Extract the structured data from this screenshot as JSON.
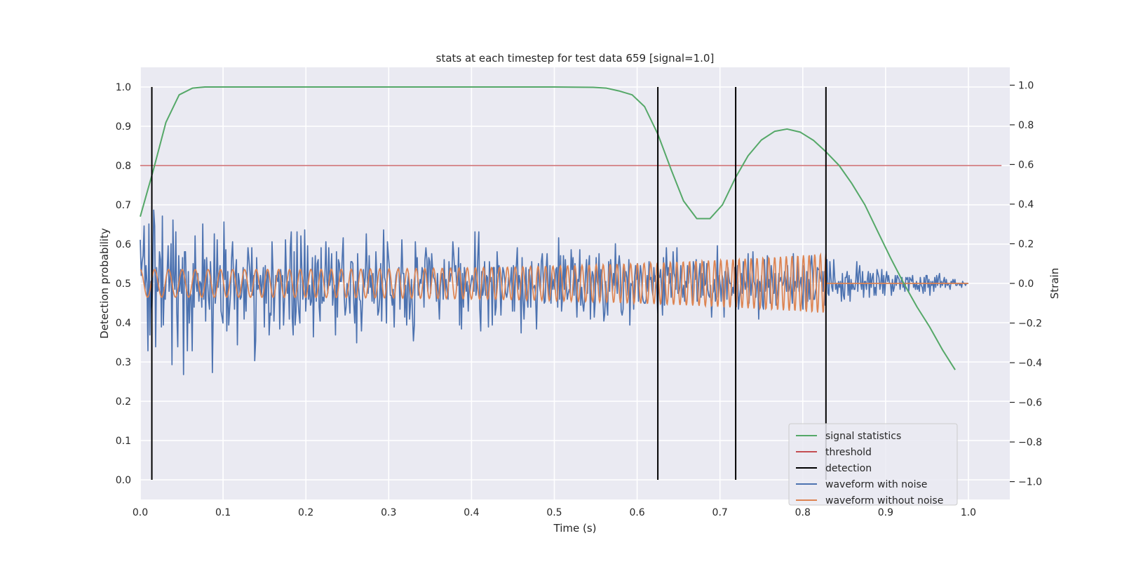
{
  "chart_data": {
    "type": "line",
    "title": "stats at each timestep for test data 659 [signal=1.0]",
    "xlabel": "Time (s)",
    "ylabel": "Detection probability",
    "ylabel_right": "Strain",
    "xlim": [
      0.0,
      1.05
    ],
    "ylim": [
      -0.05,
      1.05
    ],
    "ylim_right": [
      -1.09,
      1.09
    ],
    "x_ticks": [
      0.0,
      0.1,
      0.2,
      0.3,
      0.4,
      0.5,
      0.6,
      0.7,
      0.8,
      0.9,
      1.0
    ],
    "x_tick_labels": [
      "0.0",
      "0.1",
      "0.2",
      "0.3",
      "0.4",
      "0.5",
      "0.6",
      "0.7",
      "0.8",
      "0.9",
      "1.0"
    ],
    "y_ticks": [
      0.0,
      0.1,
      0.2,
      0.3,
      0.4,
      0.5,
      0.6,
      0.7,
      0.8,
      0.9,
      1.0
    ],
    "y_tick_labels": [
      "0.0",
      "0.1",
      "0.2",
      "0.3",
      "0.4",
      "0.5",
      "0.6",
      "0.7",
      "0.8",
      "0.9",
      "1.0"
    ],
    "y_right_ticks": [
      -1.0,
      -0.8,
      -0.6,
      -0.4,
      -0.2,
      0.0,
      0.2,
      0.4,
      0.6,
      0.8,
      1.0
    ],
    "y_right_tick_labels": [
      "−1.0",
      "−0.8",
      "−0.6",
      "−0.4",
      "−0.2",
      "0.0",
      "0.2",
      "0.4",
      "0.6",
      "0.8",
      "1.0"
    ],
    "grid": true,
    "legend_position": "lower-right",
    "colors": {
      "background": "#eaeaf2",
      "grid": "#ffffff",
      "signal_statistics": "#55a868",
      "threshold": "#c44e52",
      "detection": "#000000",
      "waveform_noise": "#4c72b0",
      "waveform_clean": "#dd8452"
    },
    "legend": [
      {
        "label": "signal statistics",
        "color": "#55a868"
      },
      {
        "label": "threshold",
        "color": "#c44e52"
      },
      {
        "label": "detection",
        "color": "#000000"
      },
      {
        "label": "waveform with noise",
        "color": "#4c72b0"
      },
      {
        "label": "waveform without noise",
        "color": "#dd8452"
      }
    ],
    "series": [
      {
        "name": "signal statistics",
        "axis": "left",
        "x": [
          0.0,
          0.016,
          0.031,
          0.047,
          0.063,
          0.078,
          0.094,
          0.2,
          0.3,
          0.4,
          0.5,
          0.547,
          0.563,
          0.578,
          0.594,
          0.609,
          0.625,
          0.641,
          0.656,
          0.672,
          0.688,
          0.703,
          0.719,
          0.734,
          0.75,
          0.766,
          0.781,
          0.797,
          0.813,
          0.828,
          0.844,
          0.859,
          0.875,
          0.891,
          0.906,
          0.922,
          0.938,
          0.953,
          0.969,
          0.984
        ],
        "y": [
          0.67,
          0.79,
          0.91,
          0.98,
          0.997,
          1.0,
          1.0,
          1.0,
          1.0,
          1.0,
          1.0,
          0.999,
          0.997,
          0.99,
          0.98,
          0.95,
          0.88,
          0.79,
          0.71,
          0.665,
          0.665,
          0.7,
          0.77,
          0.825,
          0.865,
          0.887,
          0.893,
          0.885,
          0.864,
          0.835,
          0.8,
          0.755,
          0.7,
          0.63,
          0.565,
          0.5,
          0.44,
          0.39,
          0.33,
          0.28
        ]
      },
      {
        "name": "threshold",
        "axis": "left",
        "x": [
          0.0,
          1.04
        ],
        "y": [
          0.8,
          0.8
        ]
      },
      {
        "name": "waveform with noise",
        "axis": "right",
        "x_range": [
          0.0,
          1.0
        ],
        "y": [
          0.22,
          0.04,
          0.11,
          0.14,
          0.29,
          -0.03,
          0.09,
          0.0,
          -0.34,
          0.3,
          -0.26,
          0.01,
          -0.15,
          0.01,
          0.37,
          0.29,
          -0.32,
          0.08,
          -0.04,
          -0.03,
          0.16,
          0.12,
          -0.22,
          0.34,
          -0.21,
          -0.02,
          -0.08,
          0.03,
          0.06,
          0.19,
          -0.04,
          0.02,
          0.2,
          -0.41,
          0.32,
          0.02,
          -0.03,
          0.26,
          -0.15,
          -0.32,
          0.14,
          -0.04,
          0.07,
          -0.05,
          0.13,
          -0.46,
          0.16,
          0.16,
          -0.03,
          -0.34,
          0.06,
          -0.2,
          -0.05,
          -0.06,
          -0.34,
          0.1,
          -0.12,
          0.24,
          0.0,
          -0.04,
          0.05,
          -0.09,
          0.01,
          0.0,
          -0.12,
          0.3,
          -0.08,
          0.12,
          -0.19,
          0.13,
          0.01,
          -0.08,
          -0.13,
          0.11,
          -0.02,
          -0.45,
          -0.1,
          0.25,
          -0.1,
          -0.03,
          0.22,
          -0.02,
          0.04,
          0.09,
          -0.14,
          -0.17,
          -0.2,
          0.31,
          0.02,
          0.17,
          -0.24,
          0.06,
          -0.21,
          -0.12,
          -0.04,
          0.13,
          0.21,
          0.03,
          -0.13,
          0.06,
          0.12,
          -0.31,
          0.05,
          0.01,
          -0.08,
          -0.07,
          -0.01,
          0.08,
          -0.18,
          0.02,
          -0.14,
          0.04,
          0.18,
          0.12,
          0.06,
          -0.04,
          0.18,
          -0.06,
          0.04,
          -0.39,
          -0.29,
          0.13,
          -0.03,
          -0.01,
          -0.03,
          0.04,
          -0.06,
          0.01,
          0.08,
          -0.22,
          0.09,
          -0.1,
          0.06,
          0.05,
          -0.26,
          -0.15,
          -0.16,
          0.21,
          0.06,
          -0.19,
          -0.04,
          0.04,
          0.03,
          0.01,
          0.06,
          -0.23,
          0.07,
          0.01,
          0.04,
          -0.21,
          -0.08,
          0.22,
          0.03,
          -0.05,
          0.01,
          -0.18,
          0.18,
          0.26,
          -0.17,
          -0.26,
          0.16,
          -0.21,
          -0.14,
          0.26,
          -0.08,
          -0.15,
          -0.2,
          0.24,
          0.08,
          -0.08,
          -0.03,
          0.27,
          -0.14,
          -0.03,
          0.19,
          -0.08,
          -0.01,
          -0.11,
          -0.09,
          0.13,
          -0.27,
          0.01,
          0.14,
          -0.09,
          0.1,
          0.12,
          -0.12,
          -0.19,
          0.18,
          -0.1,
          -0.07,
          -0.09,
          0.04,
          0.21,
          0.02,
          -0.05,
          0.18,
          -0.01,
          0.02,
          0.15,
          -0.11,
          -0.04,
          -0.01,
          -0.26,
          0.16,
          -0.17,
          0.12,
          0.1,
          0.01,
          0.01,
          0.13,
          0.23,
          -0.06,
          -0.16,
          -0.12,
          0.0,
          -0.03,
          -0.07,
          -0.15,
          0.11,
          0.11,
          0.1,
          -0.1,
          -0.2,
          0.01,
          -0.3,
          0.15,
          -0.02,
          -0.08,
          -0.09,
          -0.24,
          -0.1,
          0.07,
          -0.02,
          0.03,
          0.25,
          0.04,
          -0.05,
          0.14,
          -0.02,
          0.04,
          -0.09,
          0.05,
          -0.1,
          -0.05,
          0.16,
          0.03,
          -0.16,
          -0.14,
          -0.07,
          0.1,
          -0.19,
          0.03,
          0.27,
          0.03,
          0.01,
          -0.2,
          0.21,
          0.14,
          0.08,
          -0.06,
          -0.06,
          -0.11,
          -0.03,
          -0.22,
          -0.01,
          0.04,
          0.06,
          0.07,
          0.08,
          -0.13,
          0.03,
          0.22,
          0.05,
          0.05,
          -0.17,
          -0.01,
          -0.21,
          0.0,
          0.05,
          -0.18,
          -0.1,
          0.02,
          -0.15,
          -0.29,
          -0.21,
          0.21,
          0.08,
          0.13,
          -0.06,
          -0.02,
          0.02,
          0.0,
          0.08,
          0.06,
          -0.12,
          0.12,
          0.18,
          0.12,
          -0.04,
          0.13,
          0.11,
          -0.05,
          0.15,
          0.07,
          0.03,
          0.02,
          -0.01,
          -0.09,
          0.05,
          -0.07,
          -0.18,
          -0.02,
          0.03,
          0.05,
          -0.08,
          0.12,
          -0.04,
          0.02,
          -0.04,
          -0.08,
          0.11,
          0.01,
          0.05,
          0.04,
          0.21,
          0.14,
          0.06,
          0.09,
          -0.01,
          -0.01,
          0.18,
          -0.21,
          0.1,
          -0.23,
          0.05,
          -0.12,
          0.08,
          0.04,
          -0.04,
          0.01,
          -0.14,
          -0.01,
          -0.04,
          0.01,
          0.04,
          0.01,
          -0.04,
          0.26,
          -0.06,
          -0.02,
          0.14,
          0.26,
          -0.13,
          -0.24,
          0.06,
          -0.06,
          -0.03,
          0.11,
          -0.06,
          0.04,
          0.03,
          -0.22,
          0.11,
          0.01,
          0.03,
          -0.21,
          0.08,
          0.08,
          -0.16,
          -0.12,
          0.16,
          0.05,
          0.09,
          -0.01,
          -0.16,
          -0.02,
          0.08,
          0.06,
          0.02,
          -0.05,
          -0.07,
          -0.04,
          0.03,
          -0.02,
          0.02,
          0.08,
          -0.14,
          0.09,
          -0.14,
          0.03,
          0.09,
          0.18,
          -0.03,
          0.04,
          0.0,
          -0.25,
          0.13,
          -0.08,
          -0.18,
          -0.05,
          0.08,
          -0.06,
          -0.12,
          0.07,
          0.04,
          -0.12,
          0.11,
          -0.03,
          -0.02,
          -0.01,
          -0.06,
          -0.23,
          -0.03,
          0.1,
          -0.01,
          -0.04,
          0.11,
          0.15,
          0.02,
          -0.1,
          -0.09,
          0.07,
          0.15,
          0.0,
          -0.07,
          0.09,
          -0.1,
          0.05,
          -0.03,
          0.02,
          -0.03,
          0.07,
          0.08,
          -0.12,
          0.23,
          -0.08,
          0.14,
          -0.14,
          -0.07,
          0.14,
          -0.03,
          0.12,
          -0.01,
          -0.08,
          -0.05,
          -0.03,
          -0.05,
          0.17,
          0.07,
          0.13,
          -0.06,
          0.1,
          -0.04,
          -0.17,
          0.02,
          0.01,
          0.17,
          -0.11,
          -0.02,
          -0.1,
          -0.14,
          -0.08,
          0.05,
          0.12,
          -0.05,
          0.08,
          0.14,
          -0.18,
          0.0,
          0.06,
          0.04,
          -0.17,
          -0.09,
          0.13,
          0.01,
          -0.01,
          0.15,
          -0.07,
          0.07,
          0.04,
          -0.07,
          -0.19,
          -0.15,
          0.01,
          -0.1,
          -0.16,
          0.11,
          -0.04,
          0.12,
          0.05,
          -0.04,
          0.05,
          -0.01,
          0.2,
          0.01,
          -0.05,
          0.09,
          0.14,
          0.08,
          -0.14,
          -0.16,
          -0.13,
          0.09,
          0.01,
          0.06,
          0.03,
          -0.06,
          0.12,
          -0.21,
          0.0,
          -0.01,
          0.01,
          -0.13,
          0.03,
          0.09,
          0.02,
          0.1,
          -0.09,
          -0.01,
          0.09,
          0.05,
          -0.06,
          -0.09,
          -0.1,
          -0.1,
          -0.08,
          0.04,
          -0.04,
          0.11,
          0.02,
          0.03,
          -0.03,
          -0.06,
          0.08,
          0.01,
          0.04,
          -0.03,
          -0.15,
          0.04,
          0.03,
          0.07,
          -0.04,
          -0.16,
          0.13,
          -0.11,
          0.02,
          0.18,
          0.04,
          0.08,
          0.0,
          0.05,
          -0.07,
          -0.01,
          0.16,
          0.05,
          0.03,
          -0.03,
          0.18,
          -0.05,
          -0.05,
          -0.02,
          0.09,
          0.0,
          -0.07,
          -0.01,
          -0.09,
          0.01,
          -0.02,
          0.09,
          0.0,
          0.1,
          0.05,
          -0.01,
          -0.09,
          0.11,
          0.08,
          0.02,
          0.12,
          -0.09,
          -0.06,
          0.05,
          0.1,
          -0.07,
          0.05,
          -0.06,
          0.11,
          -0.01,
          0.0,
          0.1,
          -0.03,
          -0.06,
          -0.07,
          -0.01,
          -0.17,
          -0.05,
          -0.04,
          0.02,
          -0.09,
          -0.05,
          0.19,
          -0.07,
          0.04,
          -0.01,
          -0.09,
          0.04,
          0.02,
          -0.17,
          0.06,
          0.06,
          -0.08,
          0.08,
          0.03,
          0.0,
          0.0,
          -0.06,
          -0.02,
          -0.05,
          0.08,
          -0.06,
          0.02,
          0.09,
          -0.13,
          -0.07,
          -0.03,
          0.05,
          -0.05,
          0.11,
          0.02,
          -0.03,
          0.01,
          -0.02,
          0.15,
          -0.1,
          0.05,
          -0.06,
          0.01,
          0.16,
          0.01,
          -0.01,
          -0.07,
          -0.01,
          0.02,
          -0.18,
          0.01,
          -0.04,
          0.04,
          -0.11,
          -0.13,
          0.12,
          -0.04,
          0.0,
          0.14,
          -0.02,
          0.02,
          -0.1,
          0.09,
          0.03,
          -0.05,
          -0.05,
          0.05,
          -0.11,
          -0.08,
          -0.03,
          0.05,
          0.01,
          0.03,
          0.01,
          -0.01,
          0.01,
          0.06,
          0.02,
          -0.04,
          0.09,
          -0.04,
          -0.02,
          0.03,
          -0.04,
          -0.1,
          0.15,
          -0.04,
          0.01,
          -0.02,
          -0.02,
          0.11,
          -0.04,
          0.0,
          0.03,
          -0.06,
          -0.13,
          0.09,
          0.01,
          -0.13,
          0.06,
          -0.09,
          0.02,
          -0.08,
          0.09,
          0.14,
          0.06,
          -0.08,
          -0.08,
          -0.04,
          -0.02,
          0.08,
          0.07,
          0.07,
          0.03,
          0.01,
          0.06,
          -0.04,
          0.06,
          -0.11,
          -0.03,
          0.12,
          -0.05,
          -0.06,
          0.11,
          0.03,
          -0.02,
          -0.04,
          0.12,
          0.03,
          -0.03,
          0.0,
          -0.05,
          0.01,
          -0.02,
          0.01,
          -0.09,
          0.05,
          -0.06,
          -0.08,
          0.03,
          0.03,
          0.06,
          -0.06,
          0.04,
          -0.09,
          0.02,
          -0.03,
          0.0,
          -0.03,
          -0.03,
          0.02,
          0.11,
          -0.04,
          0.05,
          0.09,
          0.0,
          -0.03,
          0.06,
          -0.07,
          0.01,
          0.01,
          -0.03,
          0.02,
          0.06,
          -0.07,
          0.05,
          -0.02,
          0.03,
          0.05,
          -0.06,
          -0.02,
          -0.06,
          0.07,
          0.05,
          0.03,
          -0.03,
          0.0,
          0.07,
          -0.05,
          0.04,
          -0.06,
          0.02,
          0.06,
          0.01,
          0.04,
          0.0,
          0.0,
          -0.06,
          0.02,
          -0.04,
          -0.02,
          0.04,
          -0.01,
          0.04,
          0.03,
          0.02,
          -0.03,
          0.01,
          0.03,
          -0.02,
          0.0,
          -0.04,
          0.03,
          0.02,
          0.03,
          -0.04,
          0.03,
          0.02,
          0.01,
          0.04,
          -0.02,
          0.0,
          -0.03,
          0.01,
          -0.03,
          -0.01,
          -0.04,
          0.03,
          -0.01,
          -0.02,
          -0.05,
          0.03,
          -0.04,
          0.04,
          0.04,
          -0.02,
          0.02,
          -0.06,
          0.01,
          -0.01,
          0.01,
          -0.04,
          0.03,
          -0.02,
          0.04,
          -0.01,
          0.03,
          0.05,
          -0.02,
          0.01,
          -0.01,
          0.01,
          0.03,
          -0.02,
          0.02,
          -0.01,
          0.0,
          -0.01,
          -0.03,
          0.01,
          0.0,
          0.02,
          0.0,
          0.02,
          -0.01,
          -0.01,
          0.0,
          0.0,
          -0.01,
          0.0,
          -0.02,
          0.01,
          0.0,
          0.0,
          -0.01,
          0.0,
          0.0,
          0.0
        ]
      },
      {
        "name": "waveform without noise",
        "axis": "right",
        "model": "chirp",
        "x_range": [
          0.0,
          0.828
        ],
        "amplitude_start": 0.07,
        "amplitude_end": 0.15,
        "cycles": 85,
        "after_merger_value": 0.0,
        "x_end": 1.0
      }
    ],
    "detections": [
      0.014,
      0.625,
      0.719,
      0.828
    ]
  }
}
